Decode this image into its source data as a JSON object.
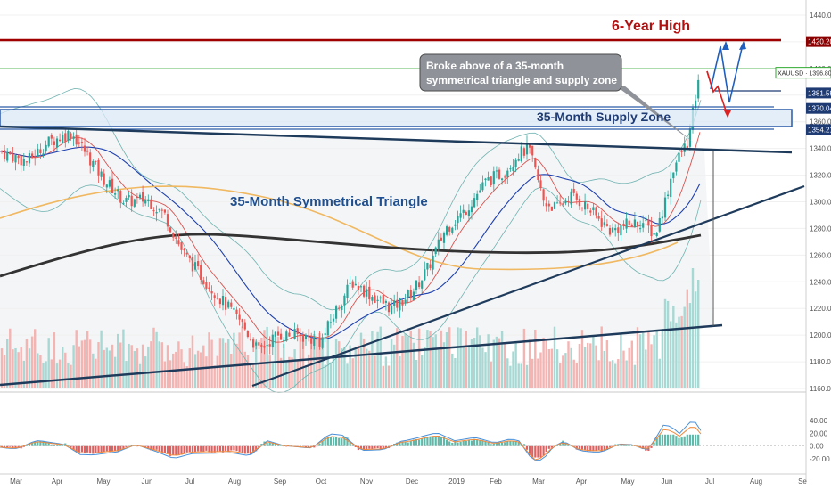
{
  "chart_data": {
    "type": "candlestick",
    "symbol": "XAUUSD",
    "title": "6-Year High",
    "annotations": {
      "callout_line1": "Broke above of a 35-month",
      "callout_line2": "symmetrical triangle and supply zone",
      "supply_zone": "35-Month Supply Zone",
      "triangle": "35-Month Symmetrical Triangle"
    },
    "price_axis": {
      "ylim": [
        1160,
        1440
      ],
      "ticks": [
        "1440.00",
        "1420.00",
        "1400.00",
        "1380.00",
        "1360.00",
        "1340.00",
        "1320.00",
        "1300.00",
        "1280.00",
        "1260.00",
        "1240.00",
        "1220.00",
        "1200.00",
        "1180.00",
        "1160.00"
      ],
      "tick_values": [
        1440,
        1420,
        1400,
        1380,
        1360,
        1340,
        1320,
        1300,
        1280,
        1260,
        1240,
        1220,
        1200,
        1180,
        1160
      ]
    },
    "price_labels": [
      {
        "text": "1420.20",
        "value": 1420.2,
        "color": "#8b0000"
      },
      {
        "text": "XAUUSD · 1396.80",
        "value": 1396.8,
        "color": "#2eaa2e"
      },
      {
        "text": "1381.59",
        "value": 1381.59,
        "color": "#1f3b73"
      },
      {
        "text": "1370.04",
        "value": 1370.04,
        "color": "#1f3b73"
      },
      {
        "text": "1354.21",
        "value": 1354.21,
        "color": "#1f3b73"
      }
    ],
    "indicator_axis": {
      "ylim": [
        -28,
        48
      ],
      "ticks": [
        "40.00",
        "20.00",
        "0.00",
        "-20.00"
      ],
      "tick_values": [
        40,
        20,
        0,
        -20
      ]
    },
    "x_axis": {
      "months": [
        "Mar",
        "Apr",
        "May",
        "Jun",
        "Jul",
        "Aug",
        "Sep",
        "Oct",
        "Nov",
        "Dec",
        "2019",
        "Feb",
        "Mar",
        "Apr",
        "May",
        "Jun",
        "Jul",
        "Aug",
        "Se"
      ]
    },
    "levels": {
      "six_year_high": 1420.2,
      "current": 1396.8,
      "supply_zone": [
        1354.21,
        1370.04
      ],
      "resistance": 1381.59
    },
    "colors": {
      "up": "#26a69a",
      "down": "#ef5350",
      "high_line": "#a10000",
      "triangle": "#1f3b5c",
      "zone_fill": "#dbe8f7",
      "zone_border": "#2a5aa8",
      "ma_blue": "#1e40af",
      "ma_red": "#d9534f",
      "ma_orange": "#f0b860",
      "ma_black": "#333333",
      "bollinger": "#6fb3b0"
    }
  }
}
